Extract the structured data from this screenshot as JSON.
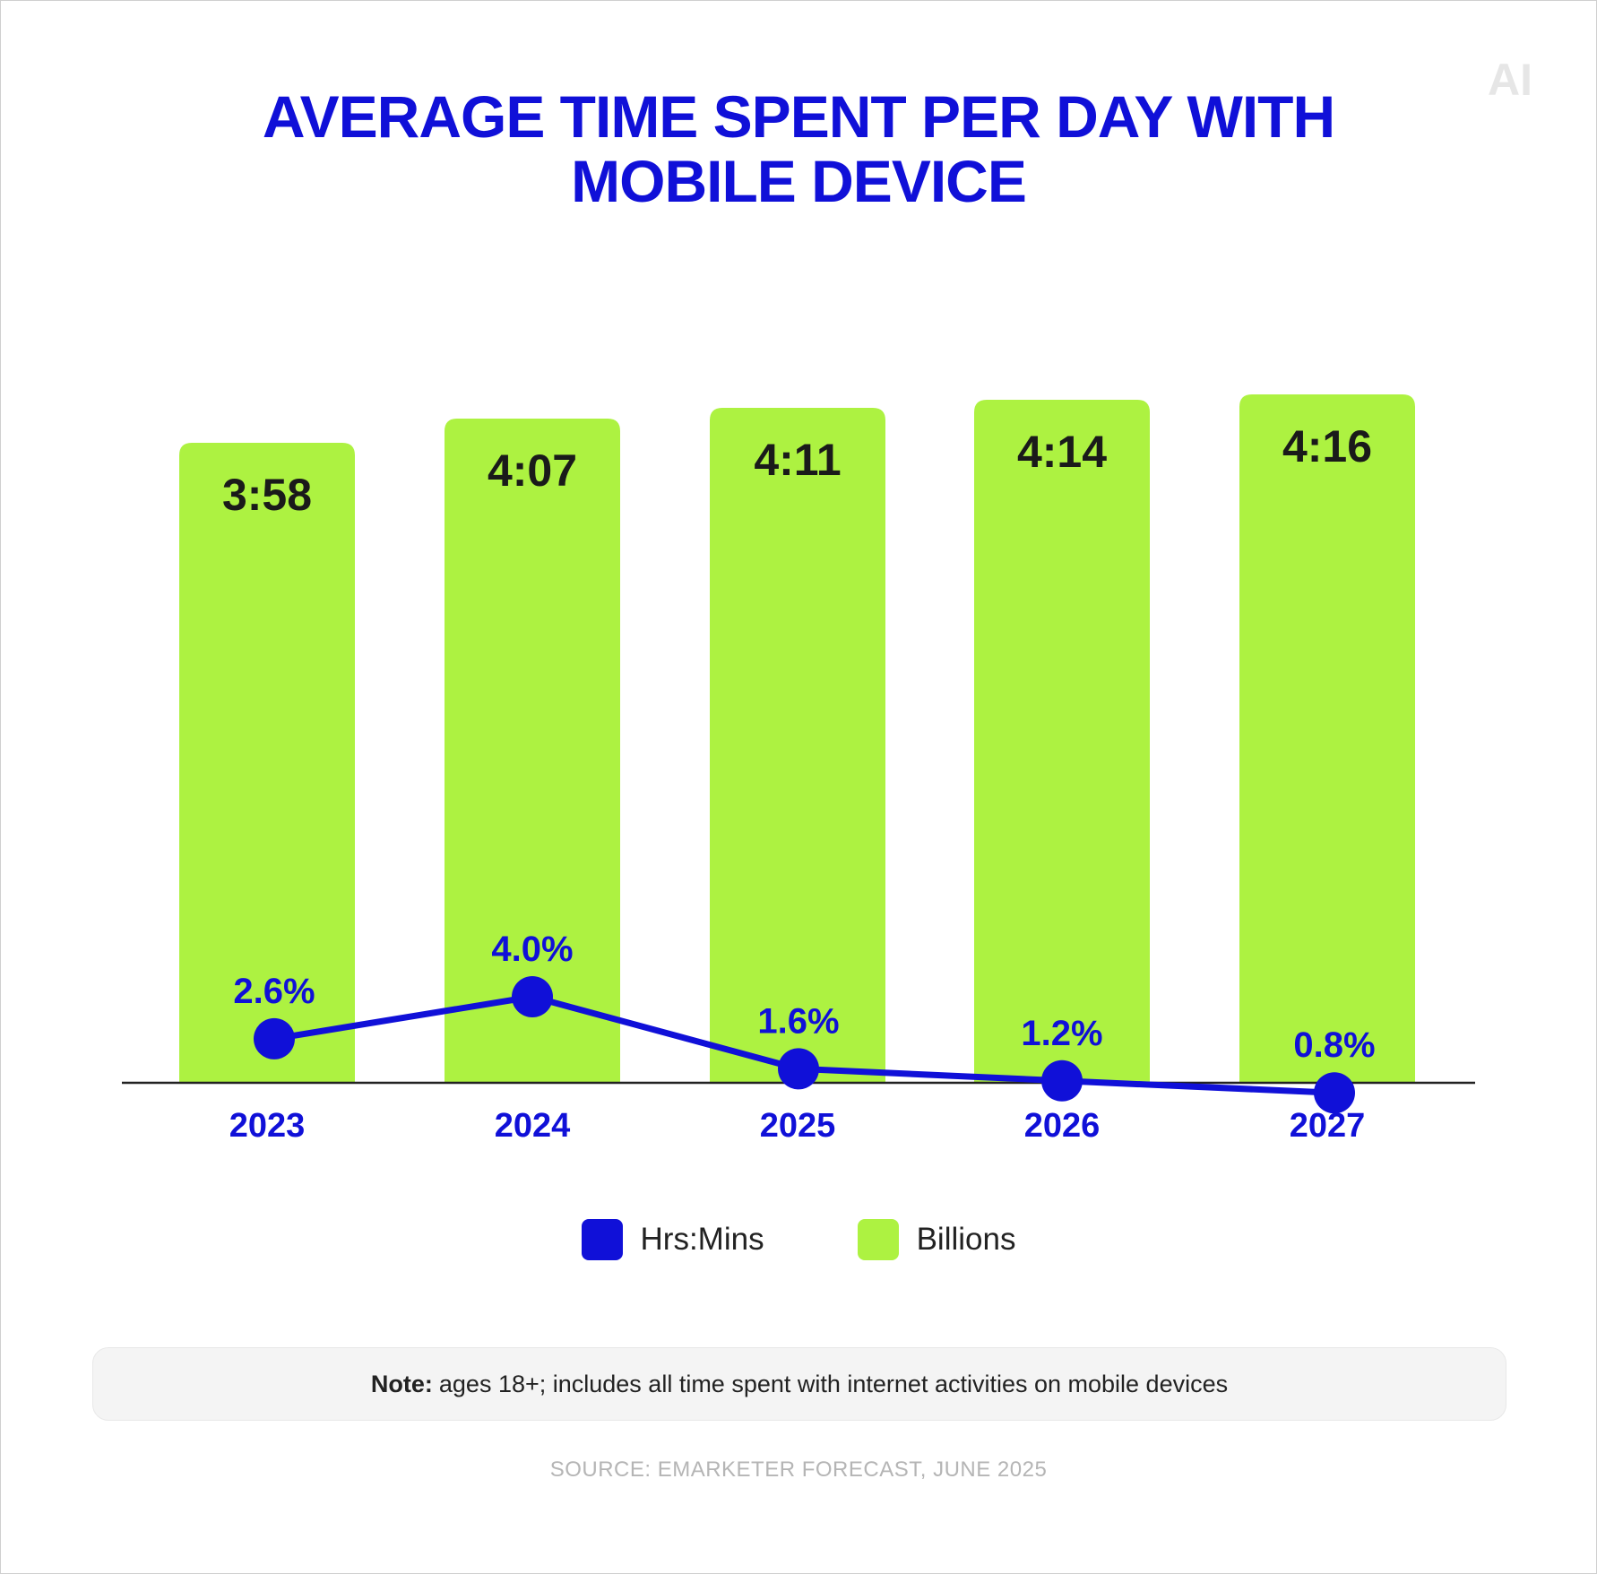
{
  "title": {
    "line1": "AVERAGE TIME SPENT PER DAY WITH",
    "line2": "MOBILE DEVICE"
  },
  "logo": {
    "text": "AI"
  },
  "colors": {
    "bar": "#adf241",
    "line": "#1010d8",
    "title": "#1010d8",
    "axis": "#222222"
  },
  "chart_data": {
    "type": "bar",
    "categories": [
      "2023",
      "2024",
      "2025",
      "2026",
      "2027"
    ],
    "series": [
      {
        "name": "Billions",
        "type": "bar",
        "values": [
          238,
          247,
          251,
          254,
          256
        ],
        "labels": [
          "3:58",
          "4:07",
          "4:11",
          "4:14",
          "4:16"
        ]
      },
      {
        "name": "Hrs:Mins",
        "type": "line",
        "values": [
          2.6,
          4.0,
          1.6,
          1.2,
          0.8
        ],
        "labels": [
          "2.6%",
          "4.0%",
          "1.6%",
          "1.2%",
          "0.8%"
        ]
      }
    ],
    "legend_position": "bottom-center",
    "grid": false
  },
  "legend": {
    "items": [
      {
        "label": "Hrs:Mins",
        "color": "#1010d8"
      },
      {
        "label": "Billions",
        "color": "#adf241"
      }
    ]
  },
  "note": {
    "label": "Note:",
    "text": "ages 18+; includes all time spent with internet activities on mobile devices"
  },
  "source": "SOURCE: EMARKETER FORECAST, JUNE 2025"
}
